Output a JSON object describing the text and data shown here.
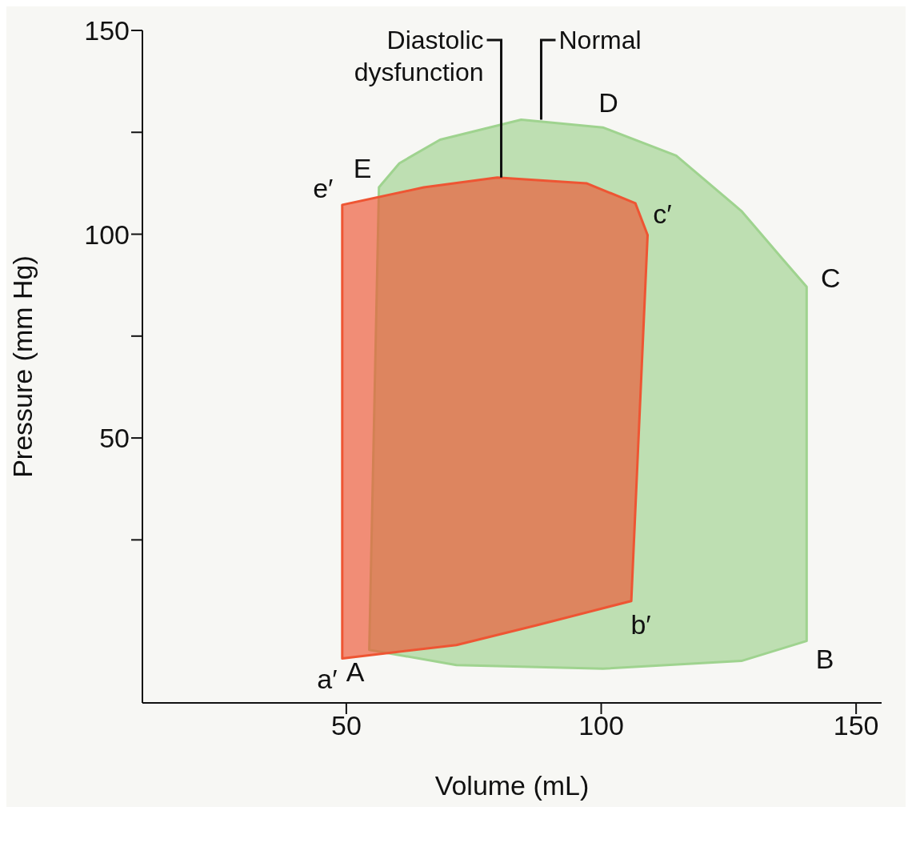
{
  "chart_data": {
    "type": "area",
    "xlabel": "Volume (mL)",
    "ylabel": "Pressure (mm Hg)",
    "xlim": [
      10,
      155
    ],
    "xticks": [
      50,
      100,
      150
    ],
    "ylim": [
      -15,
      150
    ],
    "yticks": [
      {
        "value": 25,
        "label": null
      },
      50,
      {
        "value": 75,
        "label": null
      },
      100,
      {
        "value": 125,
        "label": null
      },
      150
    ],
    "grid": false,
    "series": [
      {
        "name": "Normal",
        "color": "#9fd38f",
        "x": [
          54.5,
          71.6,
          100.3,
          127.5,
          140.3,
          140.3,
          135.5,
          127.5,
          114.7,
          100.3,
          84.3,
          68.4,
          60.4,
          56.4,
          54.5
        ],
        "values": [
          -2,
          -5.7,
          -6.6,
          -4.7,
          0.2,
          87.1,
          94,
          105.7,
          119.3,
          126.2,
          128.1,
          123.2,
          117.4,
          111.5,
          -2
        ]
      },
      {
        "name": "Diastolic dysfunction",
        "color": "#ee5533",
        "x": [
          49.2,
          71.6,
          87.5,
          105.9,
          109.1,
          106.7,
          97.1,
          79.6,
          65.2,
          49.2,
          49.2
        ],
        "values": [
          -4.1,
          -0.8,
          4.1,
          10,
          99.8,
          107.6,
          112.5,
          113.9,
          111.5,
          107.2,
          -4.1
        ]
      }
    ],
    "annotations": [
      {
        "text": "A",
        "x": 54.5,
        "y": -2
      },
      {
        "text": "B",
        "x": 140.3,
        "y": 0.2
      },
      {
        "text": "C",
        "x": 140.3,
        "y": 87.1
      },
      {
        "text": "D",
        "x": 100.3,
        "y": 126.2
      },
      {
        "text": "E",
        "x": 56.4,
        "y": 111.5
      },
      {
        "text": "a′",
        "x": 49.2,
        "y": -4.1
      },
      {
        "text": "b′",
        "x": 105.9,
        "y": 10
      },
      {
        "text": "c′",
        "x": 109.1,
        "y": 99.8
      },
      {
        "text": "e′",
        "x": 49.2,
        "y": 107.2
      }
    ]
  }
}
